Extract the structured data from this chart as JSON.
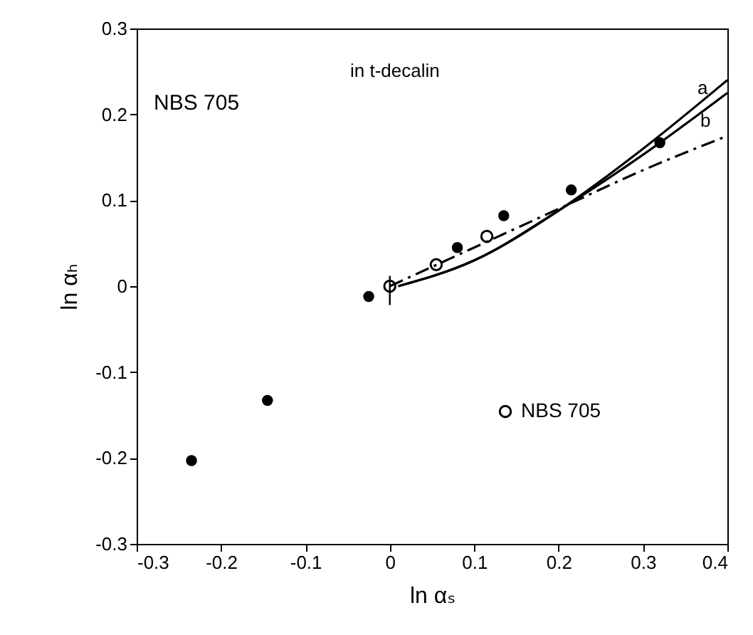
{
  "chart_data": {
    "type": "scatter",
    "xlabel": "ln αₛ",
    "ylabel": "ln αₕ",
    "xlim": [
      -0.3,
      0.4
    ],
    "ylim": [
      -0.3,
      0.3
    ],
    "xticks": [
      -0.3,
      -0.2,
      -0.1,
      0,
      0.1,
      0.2,
      0.3,
      0.4
    ],
    "yticks": [
      -0.3,
      -0.2,
      -0.1,
      0,
      0.1,
      0.2,
      0.3
    ],
    "grid": false,
    "legend": "right",
    "annotations": [
      "NBS 705",
      "in t-decalin",
      "a",
      "b"
    ],
    "series": [
      {
        "marker": "circle",
        "color": "#000000",
        "x": [
          -0.235,
          -0.145,
          -0.025,
          0.08,
          0.135,
          0.215,
          0.32
        ],
        "values": [
          -0.203,
          -0.133,
          -0.012,
          0.045,
          0.082,
          0.112,
          0.167
        ]
      },
      {
        "marker": "circle",
        "name": "NBS 705",
        "color": "#000000",
        "x": [
          0,
          0.055,
          0.115
        ],
        "values": [
          0,
          0.025,
          0.058
        ],
        "errors": [
          [
            -0.022,
            0.012
          ],
          null,
          null
        ]
      },
      {
        "type": "line",
        "color": "#000000",
        "line_style": "solid",
        "x": [
          0.01,
          0.1,
          0.2,
          0.3,
          0.4
        ],
        "values": [
          0,
          0.03,
          0.088,
          0.16,
          0.24
        ]
      },
      {
        "type": "line",
        "color": "#000000",
        "line_style": "solid",
        "x": [
          0.01,
          0.1,
          0.2,
          0.3,
          0.4
        ],
        "values": [
          0,
          0.03,
          0.088,
          0.153,
          0.225
        ]
      },
      {
        "type": "line",
        "color": "#000000",
        "line_style": "dashed",
        "x": [
          0,
          0.1,
          0.2,
          0.3,
          0.4
        ],
        "values": [
          0,
          0.045,
          0.09,
          0.135,
          0.175
        ]
      }
    ]
  }
}
